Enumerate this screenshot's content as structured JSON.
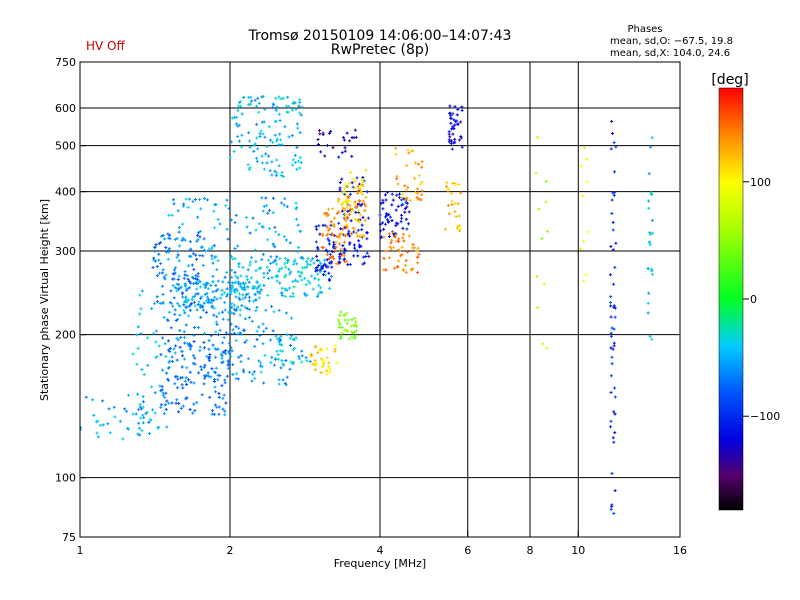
{
  "header": {
    "status": "HV Off",
    "title_line1": "Tromsø 20150109 14:06:00–14:07:43",
    "title_line2": "RwPretec (8p)",
    "phases_title": "Phases",
    "phases_o": "mean, sd,O: −67.5, 19.8",
    "phases_x": "mean, sd,X: 104.0, 24.6"
  },
  "colorbar": {
    "title": "[deg]",
    "range": [
      -180,
      180
    ],
    "ticks": [
      100,
      0,
      -100
    ],
    "tick_labels": [
      "100",
      "0",
      "−100"
    ],
    "colormap": [
      {
        "v": -180,
        "color": "#000000"
      },
      {
        "v": -150,
        "color": "#55006e"
      },
      {
        "v": -120,
        "color": "#0000e0"
      },
      {
        "v": -80,
        "color": "#0055ff"
      },
      {
        "v": -40,
        "color": "#00ccff"
      },
      {
        "v": 0,
        "color": "#00ff22"
      },
      {
        "v": 60,
        "color": "#aaff00"
      },
      {
        "v": 100,
        "color": "#ffff00"
      },
      {
        "v": 140,
        "color": "#ff8800"
      },
      {
        "v": 180,
        "color": "#ff0000"
      }
    ]
  },
  "chart_data": {
    "type": "scatter",
    "xlabel": "Frequency [MHz]",
    "ylabel": "Stationary phase Virtual Height [km]",
    "xscale": "log",
    "yscale": "log",
    "xlim": [
      1,
      16
    ],
    "ylim": [
      75,
      750
    ],
    "xticks": [
      1,
      2,
      4,
      6,
      8,
      10,
      16
    ],
    "yticks": [
      75,
      100,
      200,
      300,
      400,
      500,
      600,
      750
    ],
    "xgrid": [
      2,
      4,
      6,
      8,
      10
    ],
    "ygrid": [
      100,
      200,
      300,
      400,
      500,
      600
    ],
    "color_variable": "phase [deg]",
    "clusters": [
      {
        "f": [
          1.0,
          1.4
        ],
        "h": [
          118,
          150
        ],
        "phase": -55,
        "n": 40
      },
      {
        "f": [
          1.25,
          1.5
        ],
        "h": [
          125,
          250
        ],
        "phase": -45,
        "n": 45
      },
      {
        "f": [
          1.45,
          2.0
        ],
        "h": [
          135,
          200
        ],
        "phase": -70,
        "n": 140
      },
      {
        "f": [
          1.5,
          2.2
        ],
        "h": [
          160,
          280
        ],
        "phase": -60,
        "n": 130
      },
      {
        "f": [
          1.4,
          1.8
        ],
        "h": [
          230,
          330
        ],
        "phase": -65,
        "n": 110
      },
      {
        "f": [
          1.55,
          2.3
        ],
        "h": [
          225,
          260
        ],
        "phase": -50,
        "n": 110
      },
      {
        "f": [
          2.0,
          3.2
        ],
        "h": [
          240,
          290
        ],
        "phase": -40,
        "n": 140
      },
      {
        "f": [
          1.5,
          2.8
        ],
        "h": [
          280,
          390
        ],
        "phase": -55,
        "n": 110
      },
      {
        "f": [
          2.0,
          2.8
        ],
        "h": [
          430,
          640
        ],
        "phase": -45,
        "n": 130
      },
      {
        "f": [
          2.0,
          2.7
        ],
        "h": [
          155,
          230
        ],
        "phase": -55,
        "n": 70
      },
      {
        "f": [
          2.4,
          2.9
        ],
        "h": [
          170,
          200
        ],
        "phase": -45,
        "n": 30
      },
      {
        "f": [
          2.9,
          3.3
        ],
        "h": [
          165,
          190
        ],
        "phase": 110,
        "n": 35
      },
      {
        "f": [
          3.3,
          3.6
        ],
        "h": [
          195,
          225
        ],
        "phase": 40,
        "n": 35
      },
      {
        "f": [
          2.95,
          3.25
        ],
        "h": [
          260,
          340
        ],
        "phase": -110,
        "n": 50
      },
      {
        "f": [
          3.05,
          3.45
        ],
        "h": [
          280,
          370
        ],
        "phase": 140,
        "n": 55
      },
      {
        "f": [
          3.3,
          3.8
        ],
        "h": [
          280,
          430
        ],
        "phase": -110,
        "n": 80
      },
      {
        "f": [
          3.3,
          3.75
        ],
        "h": [
          320,
          420
        ],
        "phase": 130,
        "n": 60
      },
      {
        "f": [
          3.35,
          3.75
        ],
        "h": [
          360,
          450
        ],
        "phase": 100,
        "n": 25
      },
      {
        "f": [
          3.0,
          3.6
        ],
        "h": [
          470,
          540
        ],
        "phase": -130,
        "n": 25
      },
      {
        "f": [
          4.0,
          4.6
        ],
        "h": [
          320,
          400
        ],
        "phase": -110,
        "n": 60
      },
      {
        "f": [
          4.05,
          4.8
        ],
        "h": [
          270,
          330
        ],
        "phase": 140,
        "n": 50
      },
      {
        "f": [
          4.3,
          4.9
        ],
        "h": [
          380,
          500
        ],
        "phase": 130,
        "n": 35
      },
      {
        "f": [
          5.5,
          5.85
        ],
        "h": [
          480,
          610
        ],
        "phase": -120,
        "n": 40
      },
      {
        "f": [
          5.4,
          5.85
        ],
        "h": [
          330,
          420
        ],
        "phase": 120,
        "n": 25
      },
      {
        "f": [
          8.2,
          8.7
        ],
        "h": [
          180,
          560
        ],
        "phase": 60,
        "n": 12
      },
      {
        "f": [
          10.1,
          10.5
        ],
        "h": [
          240,
          560
        ],
        "phase": 90,
        "n": 10
      },
      {
        "f": [
          11.6,
          11.9
        ],
        "h": [
          80,
          610
        ],
        "phase": -100,
        "n": 55
      },
      {
        "f": [
          13.8,
          14.1
        ],
        "h": [
          190,
          560
        ],
        "phase": -40,
        "n": 25
      }
    ]
  }
}
